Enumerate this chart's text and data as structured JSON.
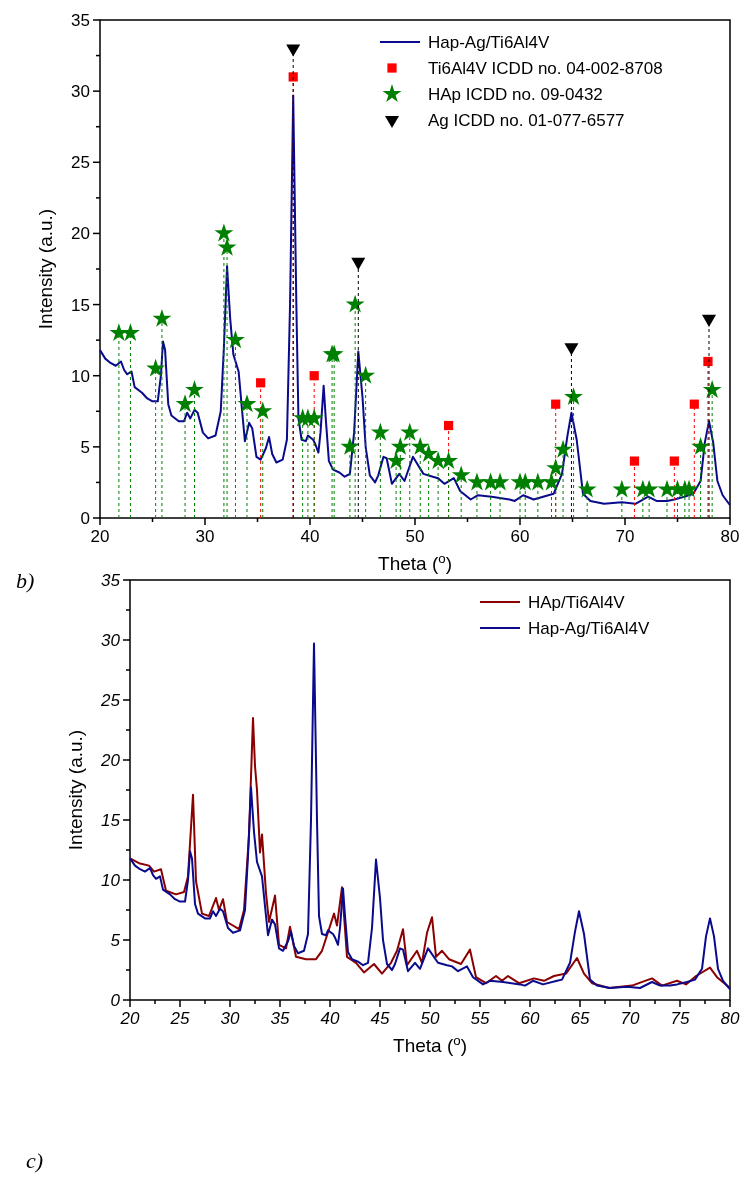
{
  "chart_data": [
    {
      "type": "line",
      "xlabel": "Theta ($^{o}$)",
      "ylabel": "Intensity (a.u.)",
      "xlim": [
        20,
        80
      ],
      "ylim": [
        0,
        35
      ],
      "xticks": [
        20,
        {
          "value": 25,
          "label": null
        },
        30,
        {
          "value": 35,
          "label": null
        },
        40,
        {
          "value": 45,
          "label": null
        },
        50,
        {
          "value": 55,
          "label": null
        },
        60,
        {
          "value": 65,
          "label": null
        },
        70,
        {
          "value": 75,
          "label": null
        },
        80
      ],
      "yticks": [
        0,
        {
          "value": 2.5,
          "label": null
        },
        5,
        {
          "value": 7.5,
          "label": null
        },
        10,
        {
          "value": 12.5,
          "label": null
        },
        15,
        {
          "value": 17.5,
          "label": null
        },
        20,
        {
          "value": 22.5,
          "label": null
        },
        25,
        {
          "value": 27.5,
          "label": null
        },
        30,
        {
          "value": 32.5,
          "label": null
        },
        35
      ],
      "legend": "top right",
      "annotations": [
        "b)"
      ],
      "series": [
        {
          "name": "Hap-Ag/Ti6Al4V",
          "color": "#0a0a8c",
          "x": [
            20,
            20.5,
            21,
            21.5,
            22,
            22.3,
            22.6,
            23,
            23.3,
            24,
            24.5,
            25,
            25.5,
            25.8,
            26,
            26.2,
            26.5,
            26.8,
            27.5,
            28,
            28.3,
            28.6,
            29,
            29.3,
            29.8,
            30.3,
            31,
            31.5,
            31.8,
            32.1,
            32.4,
            32.7,
            33.2,
            33.6,
            33.8,
            34.2,
            34.5,
            34.9,
            35.3,
            35.8,
            36.1,
            36.4,
            36.8,
            37.4,
            37.8,
            38.1,
            38.4,
            38.7,
            38.9,
            39.2,
            39.6,
            39.8,
            40.3,
            40.5,
            40.8,
            41,
            41.3,
            41.5,
            41.8,
            42.2,
            42.8,
            43.3,
            43.8,
            44.2,
            44.6,
            45,
            45.3,
            45.7,
            46.2,
            46.5,
            47,
            47.3,
            47.8,
            48.5,
            49,
            49.8,
            50.8,
            51.7,
            52.2,
            52.8,
            53.7,
            54.3,
            55.3,
            56,
            57.3,
            59,
            59.5,
            60.3,
            61.3,
            62.7,
            63.2,
            64,
            64.5,
            64.9,
            65.4,
            66,
            66.7,
            68,
            69.7,
            71,
            72.2,
            73,
            74,
            74.7,
            75.7,
            76.5,
            77.2,
            77.6,
            78,
            78.4,
            78.8,
            79.3,
            79.9,
            80
          ],
          "values": [
            11.8,
            11.2,
            10.9,
            10.7,
            11,
            10.4,
            10.1,
            10.3,
            9.2,
            8.8,
            8.4,
            8.2,
            8.2,
            10,
            12.4,
            11.8,
            8,
            7.2,
            6.8,
            6.8,
            7.4,
            7,
            7.6,
            7.4,
            6,
            5.6,
            5.8,
            7.5,
            12,
            17.7,
            14,
            11.5,
            10.3,
            7,
            5.4,
            6.7,
            6.3,
            4.3,
            4.1,
            4.9,
            5.7,
            4.5,
            3.9,
            4.1,
            5.5,
            15,
            29.7,
            15,
            7,
            5.5,
            5.4,
            5.8,
            5.5,
            5.2,
            4.6,
            6,
            9.3,
            7,
            4,
            3.4,
            3.2,
            2.9,
            3.1,
            6,
            11.7,
            8.5,
            5,
            3,
            2.5,
            3,
            4.3,
            4.2,
            2.4,
            3.1,
            2.6,
            4.3,
            3.1,
            2.9,
            2.8,
            2.4,
            2.8,
            1.9,
            1.3,
            1.6,
            1.5,
            1.3,
            1.2,
            1.6,
            1.3,
            1.6,
            1.7,
            3.1,
            5.7,
            7.4,
            5.5,
            1.7,
            1.2,
            1,
            1.1,
            1,
            1.5,
            1.2,
            1.2,
            1.3,
            1.5,
            1.7,
            2.6,
            5.3,
            6.8,
            5.3,
            2.6,
            1.6,
            1,
            0.9
          ]
        },
        {
          "name": "Ti6Al4V ICDD no. 04-002-8708",
          "type": "lollipop",
          "marker": "square",
          "line_style": "dashed",
          "color": "#ff0000",
          "x": [
            35.3,
            38.4,
            40.4,
            53.2,
            63.4,
            70.9,
            74.7,
            76.6,
            77.9
          ],
          "values": [
            9.5,
            31,
            10,
            6.5,
            8,
            4,
            4,
            8,
            11
          ]
        },
        {
          "name": "HAp ICDD no. 09-0432",
          "type": "lollipop",
          "marker": "star",
          "line_style": "dashed",
          "color": "#008000",
          "x": [
            21.8,
            22.9,
            25.3,
            25.9,
            28.1,
            29,
            31.8,
            32.1,
            32.9,
            34,
            35.5,
            39.3,
            39.8,
            40.4,
            42.1,
            42.3,
            43.8,
            44.3,
            45.3,
            46.7,
            48.2,
            48.6,
            49.5,
            50.5,
            51.3,
            52.2,
            53.2,
            54.4,
            55.9,
            57.2,
            58.1,
            60,
            60.5,
            61.7,
            63,
            63.4,
            64.1,
            65.1,
            66.4,
            69.7,
            71.7,
            72.3,
            74,
            75,
            75.7,
            76.1,
            77.2,
            78.3
          ],
          "values": [
            13,
            13,
            10.5,
            14,
            8,
            9,
            20,
            19,
            12.5,
            8,
            7.5,
            7,
            7,
            7,
            11.5,
            11.5,
            5,
            15,
            10,
            6,
            4,
            5,
            6,
            5,
            4.5,
            4,
            4,
            3,
            2.5,
            2.5,
            2.5,
            2.5,
            2.5,
            2.5,
            2.5,
            3.5,
            4.8,
            8.5,
            2,
            2,
            2,
            2,
            2,
            2,
            2,
            2,
            5,
            9
          ]
        },
        {
          "name": "Ag ICDD no. 01-077-6577",
          "type": "lollipop",
          "marker": "triangle",
          "line_style": "dashed",
          "color": "#000000",
          "x": [
            38.4,
            44.6,
            64.9,
            78
          ],
          "values": [
            33,
            18,
            12,
            14
          ]
        }
      ]
    },
    {
      "type": "line",
      "xlabel": "Theta ($^{o}$)",
      "ylabel": "Intensity (a.u.)",
      "xlim": [
        20,
        80
      ],
      "ylim": [
        0,
        35
      ],
      "xticks": [
        20,
        {
          "value": 22.5,
          "label": null
        },
        25,
        {
          "value": 27.5,
          "label": null
        },
        30,
        {
          "value": 32.5,
          "label": null
        },
        35,
        {
          "value": 37.5,
          "label": null
        },
        40,
        {
          "value": 42.5,
          "label": null
        },
        45,
        {
          "value": 47.5,
          "label": null
        },
        50,
        {
          "value": 52.5,
          "label": null
        },
        55,
        {
          "value": 57.5,
          "label": null
        },
        60,
        {
          "value": 62.5,
          "label": null
        },
        65,
        {
          "value": 67.5,
          "label": null
        },
        70,
        {
          "value": 72.5,
          "label": null
        },
        75,
        {
          "value": 77.5,
          "label": null
        },
        80
      ],
      "yticks": [
        0,
        {
          "value": 2.5,
          "label": null
        },
        5,
        {
          "value": 7.5,
          "label": null
        },
        10,
        {
          "value": 12.5,
          "label": null
        },
        15,
        {
          "value": 17.5,
          "label": null
        },
        20,
        {
          "value": 22.5,
          "label": null
        },
        25,
        {
          "value": 27.5,
          "label": null
        },
        30,
        {
          "value": 32.5,
          "label": null
        },
        35
      ],
      "legend": "top right",
      "annotations": [
        "c)"
      ],
      "series": [
        {
          "name": "HAp/Ti6Al4V",
          "color": "#8b0000",
          "x": [
            20,
            20.9,
            21.9,
            22.4,
            23.1,
            23.6,
            24.6,
            25.4,
            25.8,
            26.3,
            26.6,
            27.2,
            27.9,
            28.6,
            28.9,
            29.3,
            29.7,
            30.9,
            31.4,
            31.9,
            32.3,
            32.5,
            32.7,
            33,
            33.2,
            33.6,
            33.9,
            34.5,
            34.9,
            35.6,
            36,
            36.6,
            37.6,
            38.6,
            39.2,
            39.9,
            40.4,
            40.7,
            41.2,
            41.7,
            42.6,
            43.4,
            44.4,
            45.2,
            46.1,
            46.7,
            47.3,
            47.7,
            48.7,
            49.2,
            49.7,
            50.2,
            50.6,
            51.2,
            51.9,
            53.1,
            54,
            54.6,
            55.6,
            56.6,
            57.2,
            57.8,
            58.9,
            60.4,
            61.4,
            62.4,
            63.6,
            64.7,
            65.4,
            66.2,
            67.9,
            70.2,
            72.2,
            73.2,
            74.7,
            75.6,
            76.6,
            78,
            78.7,
            80
          ],
          "values": [
            11.8,
            11.4,
            11.2,
            10.7,
            10.9,
            9.1,
            8.8,
            9,
            10.3,
            17.1,
            9.9,
            7.2,
            7,
            8.5,
            7.5,
            8.4,
            6.5,
            5.9,
            7.5,
            13.7,
            23.5,
            19.5,
            17.5,
            12.3,
            13.8,
            8.9,
            6.5,
            8.7,
            4.6,
            4.3,
            6.1,
            3.6,
            3.4,
            3.4,
            4.1,
            5.9,
            7.2,
            6.2,
            9.4,
            3.6,
            3.1,
            2.3,
            3,
            2.2,
            3.1,
            4.1,
            5.9,
            2.9,
            4.1,
            3.1,
            5.6,
            6.9,
            3.6,
            4.1,
            3.4,
            3,
            4.2,
            1.9,
            1.4,
            2,
            1.6,
            2,
            1.4,
            1.8,
            1.6,
            2,
            2.2,
            3.5,
            2.2,
            1.4,
            1,
            1.2,
            1.8,
            1.2,
            1.6,
            1.3,
            2,
            2.7,
            1.9,
            1
          ]
        },
        {
          "name": "Hap-Ag/Ti6Al4V",
          "color": "#0a0a8c",
          "x": [
            20,
            20.5,
            21,
            21.5,
            22,
            22.3,
            22.6,
            23,
            23.3,
            24,
            24.5,
            25,
            25.5,
            25.8,
            26,
            26.2,
            26.5,
            26.8,
            27.5,
            28,
            28.3,
            28.6,
            29,
            29.3,
            29.8,
            30.3,
            31,
            31.5,
            31.8,
            32.1,
            32.4,
            32.7,
            33.2,
            33.6,
            33.8,
            34.2,
            34.5,
            34.9,
            35.3,
            35.8,
            36.1,
            36.4,
            36.8,
            37.4,
            37.8,
            38.1,
            38.4,
            38.7,
            38.9,
            39.2,
            39.6,
            39.8,
            40.3,
            40.5,
            40.8,
            41,
            41.3,
            41.5,
            41.8,
            42.2,
            42.8,
            43.3,
            43.8,
            44.2,
            44.6,
            45,
            45.3,
            45.7,
            46.2,
            46.5,
            47,
            47.3,
            47.8,
            48.5,
            49,
            49.8,
            50.8,
            51.7,
            52.2,
            52.8,
            53.7,
            54.3,
            55.3,
            56,
            57.3,
            59,
            59.5,
            60.3,
            61.3,
            62.7,
            63.2,
            64,
            64.5,
            64.9,
            65.4,
            66,
            66.7,
            68,
            69.7,
            71,
            72.2,
            73,
            74,
            74.7,
            75.7,
            76.5,
            77.2,
            77.6,
            78,
            78.4,
            78.8,
            79.3,
            79.9,
            80
          ],
          "values": [
            11.8,
            11.2,
            10.9,
            10.7,
            11,
            10.4,
            10.1,
            10.3,
            9.2,
            8.8,
            8.4,
            8.2,
            8.2,
            10,
            12.4,
            11.8,
            8,
            7.2,
            6.8,
            6.8,
            7.4,
            7,
            7.6,
            7.4,
            6,
            5.6,
            5.8,
            7.5,
            12,
            17.7,
            14,
            11.5,
            10.3,
            7,
            5.4,
            6.7,
            6.3,
            4.3,
            4.1,
            4.9,
            5.7,
            4.5,
            3.9,
            4.1,
            5.5,
            15,
            29.7,
            15,
            7,
            5.5,
            5.4,
            5.8,
            5.5,
            5.2,
            4.6,
            6,
            9.3,
            7,
            4,
            3.4,
            3.2,
            2.9,
            3.1,
            6,
            11.7,
            8.5,
            5,
            3,
            2.5,
            3,
            4.3,
            4.2,
            2.4,
            3.1,
            2.6,
            4.3,
            3.1,
            2.9,
            2.8,
            2.4,
            2.8,
            1.9,
            1.3,
            1.6,
            1.5,
            1.3,
            1.2,
            1.6,
            1.3,
            1.6,
            1.7,
            3.1,
            5.7,
            7.4,
            5.5,
            1.7,
            1.2,
            1,
            1.1,
            1,
            1.5,
            1.2,
            1.2,
            1.3,
            1.5,
            1.7,
            2.6,
            5.3,
            6.8,
            5.3,
            2.6,
            1.6,
            1,
            0.9
          ]
        }
      ]
    }
  ]
}
